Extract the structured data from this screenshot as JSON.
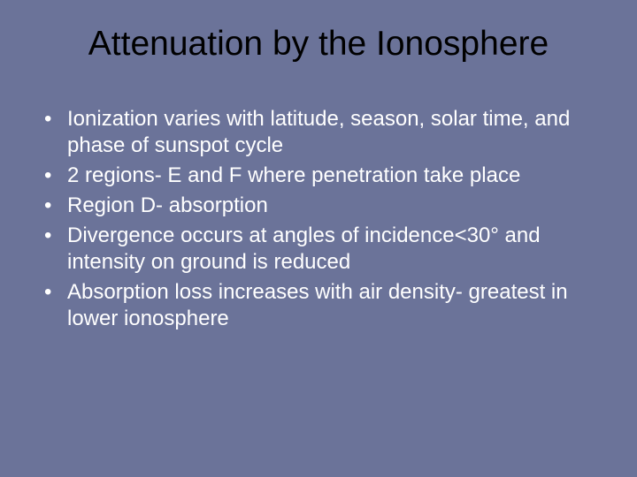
{
  "slide": {
    "background_color": "#6b7399",
    "title": {
      "text": "Attenuation by the Ionosphere",
      "color": "#000000",
      "fontsize": 39
    },
    "bullets": [
      "Ionization varies with latitude, season, solar time, and phase of sunspot cycle",
      "2 regions- E and F where penetration take place",
      "Region D- absorption",
      "Divergence occurs at angles of incidence<30° and intensity on ground is reduced",
      "Absorption loss  increases with air density- greatest in lower ionosphere"
    ],
    "bullet_style": {
      "text_color": "#ffffff",
      "fontsize": 24,
      "marker": "•"
    }
  }
}
